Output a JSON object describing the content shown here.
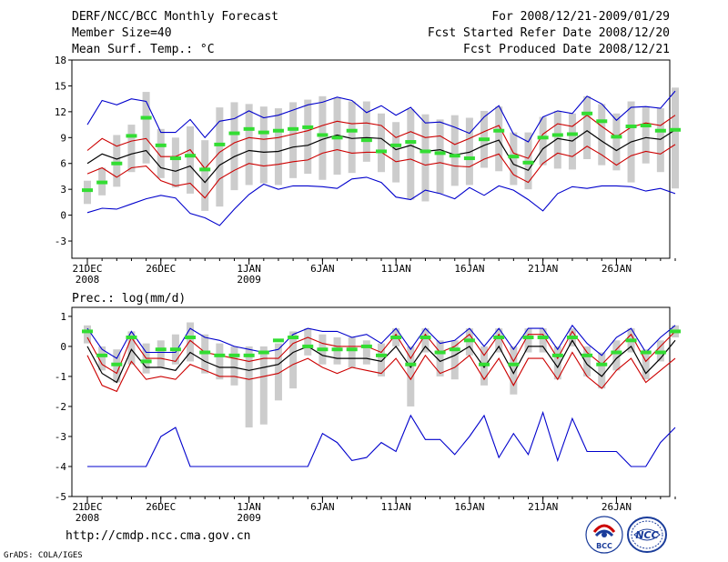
{
  "header": {
    "left": [
      "DERF/NCC/BCC Monthly Forecast",
      "Member Size=40",
      "Mean Surf. Temp.: °C"
    ],
    "right": [
      "For 2008/12/21-2009/01/29",
      "Fcst Started Refer Date 2008/12/20",
      "Fcst Produced Date 2008/12/21"
    ]
  },
  "footer": {
    "url": "http://cmdp.ncc.cma.gov.cn",
    "credit": "GrADS: COLA/IGES",
    "logo_bcc": "BCC",
    "logo_ncc": "NCC"
  },
  "colors": {
    "ens_max_min": "#0000cc",
    "spread": "#cc0000",
    "mean": "#000000",
    "median": "#33dd33",
    "box": "#cccccc"
  },
  "chart_data": [
    {
      "type": "box-line",
      "title": "Mean Surf. Temp.: °C",
      "ylim": [
        -5,
        18
      ],
      "yticks": [
        -3,
        0,
        3,
        6,
        9,
        12,
        15,
        18
      ],
      "xticks": [
        {
          "day": 0,
          "label": "21DEC",
          "sub": "2008"
        },
        {
          "day": 5,
          "label": "26DEC",
          "sub": ""
        },
        {
          "day": 11,
          "label": "1JAN",
          "sub": "2009"
        },
        {
          "day": 16,
          "label": "6JAN",
          "sub": ""
        },
        {
          "day": 21,
          "label": "11JAN",
          "sub": ""
        },
        {
          "day": 26,
          "label": "16JAN",
          "sub": ""
        },
        {
          "day": 31,
          "label": "21JAN",
          "sub": ""
        },
        {
          "day": 36,
          "label": "26JAN",
          "sub": ""
        }
      ],
      "ens_max": [
        10.5,
        13.3,
        12.8,
        13.5,
        13.2,
        9.6,
        9.6,
        11.1,
        9.0,
        10.9,
        11.2,
        12.1,
        11.3,
        11.6,
        12.2,
        12.8,
        13.1,
        13.7,
        13.3,
        11.9,
        12.7,
        11.6,
        12.5,
        10.7,
        10.8,
        10.2,
        9.5,
        11.4,
        12.7,
        9.4,
        8.5,
        11.4,
        12.1,
        11.8,
        13.8,
        12.9,
        11.0,
        12.5,
        12.6,
        12.4,
        14.4
      ],
      "ens_min": [
        0.3,
        0.8,
        0.7,
        1.3,
        1.9,
        2.3,
        2.0,
        0.2,
        -0.3,
        -1.2,
        0.7,
        2.4,
        3.6,
        3.0,
        3.4,
        3.4,
        3.3,
        3.1,
        4.2,
        4.4,
        3.8,
        2.1,
        1.8,
        2.9,
        2.5,
        1.9,
        3.2,
        2.3,
        3.4,
        2.9,
        1.8,
        0.5,
        2.5,
        3.3,
        3.1,
        3.4,
        3.4,
        3.3,
        2.8,
        3.1,
        2.5
      ],
      "spr_hi": [
        7.5,
        8.9,
        8.0,
        8.6,
        8.9,
        6.8,
        6.8,
        7.6,
        5.4,
        7.3,
        8.4,
        9.0,
        8.8,
        9.0,
        9.4,
        9.8,
        10.4,
        10.9,
        10.6,
        10.7,
        10.4,
        9.0,
        9.7,
        9.0,
        9.2,
        8.2,
        8.9,
        9.7,
        10.4,
        7.2,
        6.6,
        9.4,
        10.6,
        10.3,
        11.6,
        10.3,
        9.1,
        10.2,
        10.7,
        10.4,
        11.6
      ],
      "spr_lo": [
        4.8,
        5.5,
        4.4,
        5.5,
        5.7,
        4.0,
        3.4,
        3.7,
        2.0,
        4.2,
        5.2,
        6.0,
        5.7,
        5.9,
        6.2,
        6.4,
        7.2,
        7.6,
        7.2,
        7.3,
        7.3,
        6.2,
        6.5,
        5.8,
        6.1,
        5.7,
        5.6,
        6.5,
        7.1,
        4.7,
        3.8,
        6.0,
        7.2,
        6.8,
        8.0,
        7.0,
        5.8,
        6.9,
        7.4,
        7.1,
        8.2
      ],
      "mean": [
        6.0,
        7.1,
        6.5,
        7.1,
        7.5,
        5.5,
        5.1,
        5.7,
        3.8,
        5.8,
        6.8,
        7.5,
        7.3,
        7.4,
        7.9,
        8.1,
        8.8,
        9.3,
        8.9,
        9.0,
        8.9,
        7.6,
        8.1,
        7.4,
        7.6,
        7.0,
        7.3,
        8.1,
        8.7,
        5.9,
        5.2,
        7.7,
        8.9,
        8.6,
        9.8,
        8.6,
        7.5,
        8.5,
        9.0,
        8.8,
        9.9
      ],
      "median": [
        2.9,
        3.8,
        6.0,
        9.2,
        11.3,
        8.1,
        6.6,
        6.9,
        5.3,
        8.2,
        9.5,
        10.0,
        9.6,
        9.8,
        10.0,
        10.2,
        9.3,
        9.0,
        9.8,
        8.7,
        7.4,
        8.1,
        8.5,
        7.4,
        7.2,
        6.9,
        6.6,
        8.8,
        9.8,
        6.8,
        6.1,
        9.0,
        9.3,
        9.4,
        11.8,
        10.9,
        9.1,
        10.3,
        10.4,
        9.8,
        9.9
      ],
      "box_hi": [
        4.0,
        5.5,
        9.3,
        10.5,
        14.3,
        10.0,
        9.0,
        10.3,
        8.7,
        12.5,
        13.1,
        12.9,
        12.6,
        12.4,
        13.1,
        13.4,
        13.8,
        13.6,
        13.2,
        13.2,
        11.8,
        10.8,
        12.3,
        11.7,
        11.1,
        11.6,
        11.3,
        12.1,
        12.6,
        9.6,
        9.6,
        11.4,
        12.1,
        11.8,
        13.8,
        12.9,
        11.8,
        13.2,
        12.6,
        12.4,
        14.8
      ],
      "box_lo": [
        1.3,
        2.3,
        3.3,
        5.0,
        6.0,
        4.3,
        3.2,
        2.5,
        0.5,
        1.0,
        2.9,
        3.5,
        3.7,
        3.5,
        4.3,
        4.8,
        4.1,
        4.7,
        4.9,
        6.2,
        5.0,
        3.8,
        1.8,
        1.6,
        2.5,
        3.4,
        3.5,
        5.5,
        5.1,
        3.5,
        3.0,
        5.8,
        5.4,
        5.3,
        6.5,
        5.8,
        5.2,
        3.8,
        6.0,
        5.0,
        3.1
      ]
    },
    {
      "type": "box-line",
      "title": "Prec.: log(mm/d)",
      "ylim": [
        -5,
        1.3
      ],
      "yticks": [
        -5,
        -4,
        -3,
        -2,
        -1,
        0,
        1
      ],
      "xticks": [
        {
          "day": 0,
          "label": "21DEC",
          "sub": "2008"
        },
        {
          "day": 5,
          "label": "26DEC",
          "sub": ""
        },
        {
          "day": 11,
          "label": "1JAN",
          "sub": "2009"
        },
        {
          "day": 16,
          "label": "6JAN",
          "sub": ""
        },
        {
          "day": 21,
          "label": "11JAN",
          "sub": ""
        },
        {
          "day": 26,
          "label": "16JAN",
          "sub": ""
        },
        {
          "day": 31,
          "label": "21JAN",
          "sub": ""
        },
        {
          "day": 36,
          "label": "26JAN",
          "sub": ""
        }
      ],
      "ens_max": [
        0.6,
        -0.1,
        -0.4,
        0.5,
        -0.2,
        -0.2,
        -0.2,
        0.6,
        0.3,
        0.2,
        0.0,
        -0.1,
        -0.2,
        -0.1,
        0.4,
        0.6,
        0.5,
        0.5,
        0.3,
        0.4,
        0.1,
        0.6,
        -0.1,
        0.6,
        0.1,
        0.2,
        0.6,
        0.0,
        0.6,
        -0.1,
        0.6,
        0.6,
        -0.1,
        0.7,
        0.1,
        -0.3,
        0.3,
        0.6,
        -0.2,
        0.3,
        0.7
      ],
      "ens_min": [
        -4.0,
        -4.0,
        -4.0,
        -4.0,
        -4.0,
        -3.0,
        -2.7,
        -4.0,
        -4.0,
        -4.0,
        -4.0,
        -4.0,
        -4.0,
        -4.0,
        -4.0,
        -4.0,
        -2.9,
        -3.2,
        -3.8,
        -3.7,
        -3.2,
        -3.5,
        -2.3,
        -3.1,
        -3.1,
        -3.6,
        -3.0,
        -2.3,
        -3.7,
        -2.9,
        -3.6,
        -2.2,
        -3.8,
        -2.4,
        -3.5,
        -3.5,
        -3.5,
        -4.0,
        -4.0,
        -3.2,
        -2.7
      ],
      "spr_hi": [
        0.3,
        -0.6,
        -0.9,
        0.3,
        -0.4,
        -0.4,
        -0.5,
        0.2,
        -0.2,
        -0.3,
        -0.4,
        -0.5,
        -0.4,
        -0.4,
        0.1,
        0.3,
        0.1,
        0.0,
        0.0,
        0.0,
        -0.2,
        0.4,
        -0.4,
        0.4,
        -0.2,
        0.0,
        0.4,
        -0.3,
        0.4,
        -0.5,
        0.4,
        0.4,
        -0.4,
        0.5,
        -0.2,
        -0.6,
        -0.1,
        0.4,
        -0.5,
        0.0,
        0.5
      ],
      "spr_lo": [
        -0.3,
        -1.3,
        -1.5,
        -0.5,
        -1.1,
        -1.0,
        -1.1,
        -0.6,
        -0.8,
        -1.0,
        -1.0,
        -1.1,
        -1.0,
        -0.9,
        -0.6,
        -0.4,
        -0.7,
        -0.9,
        -0.7,
        -0.8,
        -0.9,
        -0.4,
        -1.1,
        -0.3,
        -0.9,
        -0.7,
        -0.3,
        -1.1,
        -0.4,
        -1.3,
        -0.4,
        -0.4,
        -1.1,
        -0.2,
        -1.0,
        -1.4,
        -0.8,
        -0.4,
        -1.2,
        -0.8,
        -0.4
      ],
      "mean": [
        0.0,
        -0.9,
        -1.2,
        -0.1,
        -0.7,
        -0.7,
        -0.8,
        -0.2,
        -0.5,
        -0.7,
        -0.7,
        -0.8,
        -0.7,
        -0.6,
        -0.2,
        0.0,
        -0.3,
        -0.4,
        -0.4,
        -0.4,
        -0.5,
        0.0,
        -0.7,
        0.0,
        -0.5,
        -0.3,
        0.0,
        -0.7,
        0.0,
        -0.9,
        0.0,
        0.0,
        -0.7,
        0.2,
        -0.6,
        -1.0,
        -0.4,
        0.0,
        -0.9,
        -0.4,
        0.2
      ],
      "median": [
        0.5,
        -0.3,
        -0.6,
        0.3,
        -0.5,
        -0.1,
        -0.1,
        0.3,
        -0.2,
        -0.3,
        -0.3,
        -0.3,
        -0.2,
        0.2,
        0.3,
        0.0,
        -0.1,
        -0.1,
        -0.1,
        0.0,
        -0.3,
        0.3,
        -0.6,
        0.3,
        -0.2,
        -0.1,
        0.2,
        -0.6,
        0.3,
        -0.6,
        0.3,
        0.3,
        -0.3,
        0.3,
        -0.3,
        -0.6,
        -0.2,
        0.2,
        -0.2,
        -0.2,
        0.5
      ],
      "box_hi": [
        0.7,
        0.0,
        -0.1,
        0.5,
        0.1,
        0.2,
        0.4,
        0.8,
        0.4,
        0.1,
        0.0,
        0.0,
        0.0,
        0.1,
        0.5,
        0.6,
        0.4,
        0.3,
        0.3,
        0.2,
        0.1,
        0.6,
        0.0,
        0.6,
        0.2,
        0.2,
        0.6,
        0.0,
        0.6,
        0.0,
        0.6,
        0.6,
        0.0,
        0.6,
        0.0,
        -0.2,
        0.2,
        0.6,
        -0.1,
        0.2,
        0.7
      ],
      "box_lo": [
        0.1,
        -0.8,
        -1.2,
        -0.6,
        -0.9,
        -0.7,
        -0.6,
        -0.5,
        -0.9,
        -1.1,
        -1.3,
        -2.7,
        -2.6,
        -1.8,
        -1.4,
        -0.3,
        -0.6,
        -0.6,
        -0.7,
        -0.6,
        -1.0,
        0.0,
        -2.0,
        -0.2,
        -1.0,
        -1.1,
        -0.3,
        -1.3,
        -0.2,
        -1.6,
        -0.2,
        -0.2,
        -1.1,
        0.0,
        -1.0,
        -1.4,
        -0.8,
        -0.2,
        -1.1,
        -0.5,
        0.3
      ]
    }
  ]
}
